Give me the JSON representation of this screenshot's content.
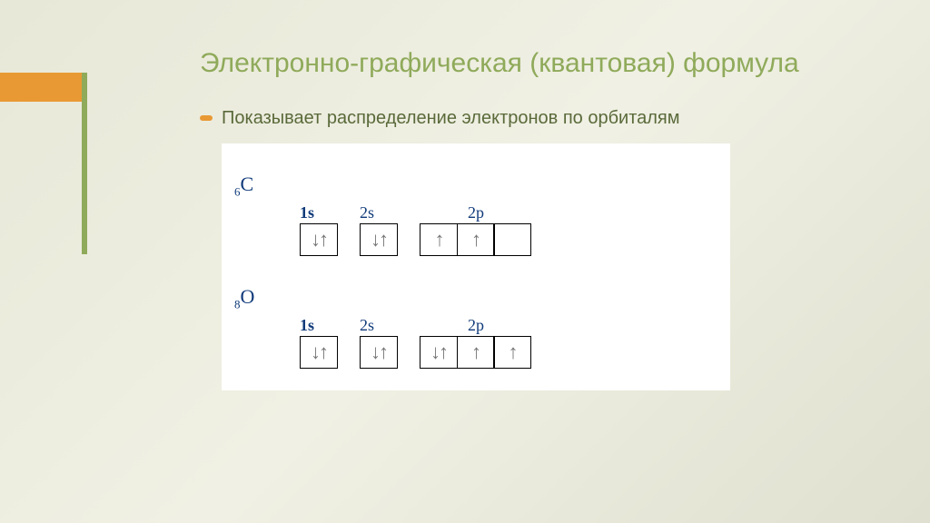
{
  "accent": {
    "bar_color": "#e89934",
    "line_color": "#8faa5a"
  },
  "title": "Электронно-графическая (квантовая) формула",
  "subtitle": "Показывает распределение электронов по орбиталям",
  "background_gradient": [
    "#e8e8d8",
    "#f0f0e4",
    "#e0e0d0"
  ],
  "diagram": {
    "background": "#ffffff",
    "box_border": "#000000",
    "arrow_color": "#888888",
    "label_color": "#103a7a",
    "orbital_box_size": [
      42,
      36
    ],
    "elements": [
      {
        "symbol": "C",
        "atomic_number": 6,
        "orbitals": [
          {
            "label": "1s",
            "label_bold": true,
            "step": "1s",
            "boxes": [
              "↓↑"
            ]
          },
          {
            "label": "2s",
            "label_bold": false,
            "step": "2s",
            "boxes": [
              "↓↑"
            ]
          },
          {
            "label": "2p",
            "label_bold": false,
            "step": "2p",
            "boxes": [
              "↑",
              "↑",
              ""
            ]
          }
        ]
      },
      {
        "symbol": "O",
        "atomic_number": 8,
        "orbitals": [
          {
            "label": "1s",
            "label_bold": true,
            "step": "1s",
            "boxes": [
              "↓↑"
            ]
          },
          {
            "label": "2s",
            "label_bold": false,
            "step": "2s",
            "boxes": [
              "↓↑"
            ]
          },
          {
            "label": "2p",
            "label_bold": false,
            "step": "2p",
            "boxes": [
              "↓↑",
              "↑",
              "↑"
            ]
          }
        ]
      }
    ]
  }
}
